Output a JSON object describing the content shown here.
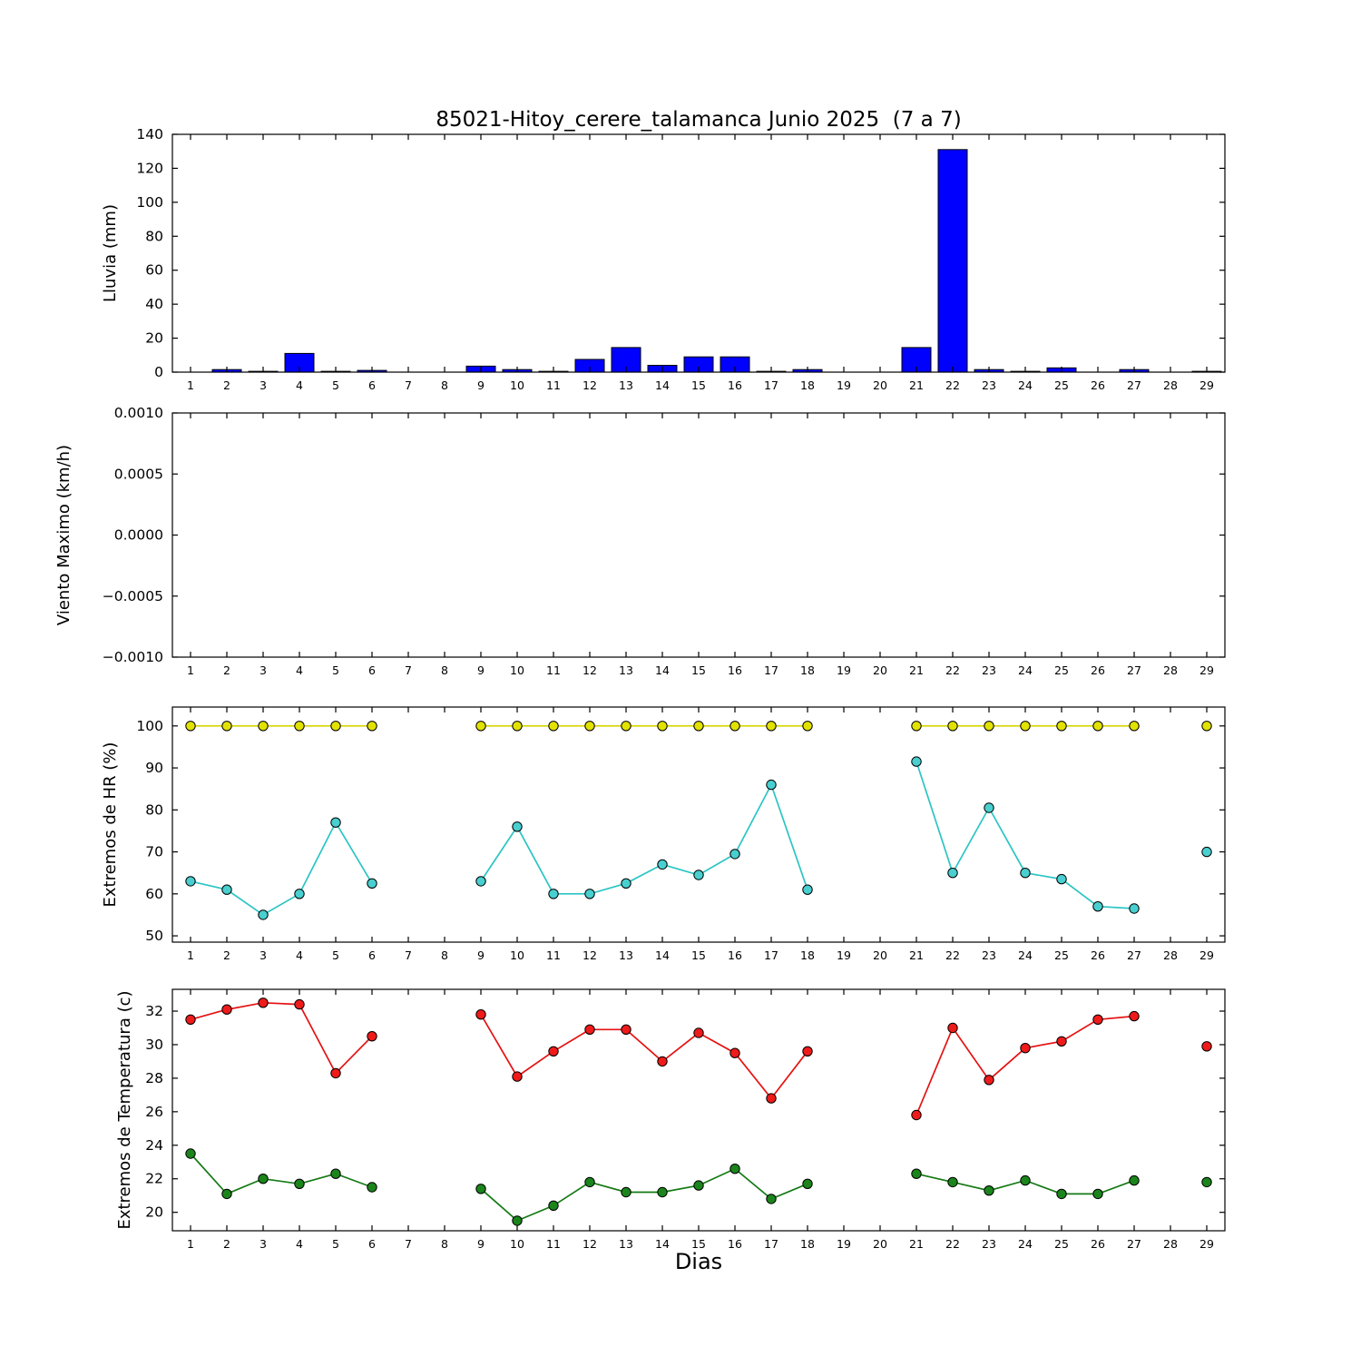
{
  "figure": {
    "title": "85021-Hitoy_cerere_talamanca Junio 2025  (7 a 7)",
    "xlabel": "Dias"
  },
  "xtick_labels": [
    "1",
    "2",
    "3",
    "4",
    "5",
    "6",
    "7",
    "8",
    "9",
    "10",
    "11",
    "12",
    "13",
    "14",
    "15",
    "16",
    "17",
    "18",
    "19",
    "20",
    "21",
    "22",
    "23",
    "24",
    "25",
    "26",
    "27",
    "28",
    "29"
  ],
  "chart_data": [
    {
      "type": "bar",
      "name": "lluvia",
      "title": "",
      "ylabel": "Lluvia (mm)",
      "xlim": [
        0.5,
        29.5
      ],
      "ylim": [
        0,
        140
      ],
      "ytick_values": [
        0,
        20,
        40,
        60,
        80,
        100,
        120,
        140
      ],
      "ytick_labels": [
        "0",
        "20",
        "40",
        "60",
        "80",
        "100",
        "120",
        "140"
      ],
      "bar_color": "#0000ff",
      "categories": [
        1,
        2,
        3,
        4,
        5,
        6,
        7,
        8,
        9,
        10,
        11,
        12,
        13,
        14,
        15,
        16,
        17,
        18,
        19,
        20,
        21,
        22,
        23,
        24,
        25,
        26,
        27,
        28,
        29
      ],
      "values": [
        0,
        1.5,
        0.5,
        11,
        0.5,
        1,
        0,
        0,
        3.5,
        1.5,
        0.5,
        7.5,
        14.5,
        4,
        9,
        9,
        0.5,
        1.5,
        0,
        0,
        14.5,
        131,
        1.5,
        0.5,
        2.5,
        0,
        1.5,
        0,
        0.5
      ]
    },
    {
      "type": "line",
      "name": "viento-maximo",
      "title": "",
      "ylabel": "Viento Maximo (km/h)",
      "xlim": [
        0.5,
        29.5
      ],
      "ylim": [
        -0.001,
        0.001
      ],
      "ytick_values": [
        -0.001,
        -0.0005,
        0,
        0.0005,
        0.001
      ],
      "ytick_labels": [
        "−0.0010",
        "−0.0005",
        "0.0000",
        "0.0005",
        "0.0010"
      ],
      "series": []
    },
    {
      "type": "line",
      "name": "extremos-hr",
      "title": "",
      "ylabel": "Extremos de HR (%)",
      "xlim": [
        0.5,
        29.5
      ],
      "ylim": [
        48.5,
        104.5
      ],
      "ytick_values": [
        50,
        60,
        70,
        80,
        90,
        100
      ],
      "ytick_labels": [
        "50",
        "60",
        "70",
        "80",
        "90",
        "100"
      ],
      "series": [
        {
          "name": "hr-maxima",
          "color": "#d6d600",
          "marker_fill": "#e2e200",
          "x": [
            1,
            2,
            3,
            4,
            5,
            6,
            9,
            10,
            11,
            12,
            13,
            14,
            15,
            16,
            17,
            18,
            21,
            22,
            23,
            24,
            25,
            26,
            27,
            29
          ],
          "y": [
            100,
            100,
            100,
            100,
            100,
            100,
            100,
            100,
            100,
            100,
            100,
            100,
            100,
            100,
            100,
            100,
            100,
            100,
            100,
            100,
            100,
            100,
            100,
            100
          ]
        },
        {
          "name": "hr-minima",
          "color": "#2cc4c4",
          "marker_fill": "#49cfcf",
          "x": [
            1,
            2,
            3,
            4,
            5,
            6,
            9,
            10,
            11,
            12,
            13,
            14,
            15,
            16,
            17,
            18,
            21,
            22,
            23,
            24,
            25,
            26,
            27,
            29
          ],
          "y": [
            63,
            61,
            55,
            60,
            77,
            62.5,
            63,
            76,
            60,
            60,
            62.5,
            67,
            64.5,
            69.5,
            86,
            61,
            91.5,
            65,
            80.5,
            65,
            63.5,
            57,
            56.5,
            70
          ]
        }
      ]
    },
    {
      "type": "line",
      "name": "extremos-temperatura",
      "title": "",
      "ylabel": "Extremos de Temperatura (c)",
      "xlim": [
        0.5,
        29.5
      ],
      "ylim": [
        18.9,
        33.3
      ],
      "ytick_values": [
        20,
        22,
        24,
        26,
        28,
        30,
        32
      ],
      "ytick_labels": [
        "20",
        "22",
        "24",
        "26",
        "28",
        "30",
        "32"
      ],
      "series": [
        {
          "name": "temperatura-maxima",
          "color": "#e51212",
          "marker_fill": "#ef1a1a",
          "x": [
            1,
            2,
            3,
            4,
            5,
            6,
            9,
            10,
            11,
            12,
            13,
            14,
            15,
            16,
            17,
            18,
            21,
            22,
            23,
            24,
            25,
            26,
            27,
            29
          ],
          "y": [
            31.5,
            32.1,
            32.5,
            32.4,
            28.3,
            30.5,
            31.8,
            28.1,
            29.6,
            30.9,
            30.9,
            29.0,
            30.7,
            29.5,
            26.8,
            29.6,
            25.8,
            31.0,
            27.9,
            29.8,
            30.2,
            31.5,
            31.7,
            29.9
          ]
        },
        {
          "name": "temperatura-minima",
          "color": "#157a15",
          "marker_fill": "#1b851b",
          "x": [
            1,
            2,
            3,
            4,
            5,
            6,
            9,
            10,
            11,
            12,
            13,
            14,
            15,
            16,
            17,
            18,
            21,
            22,
            23,
            24,
            25,
            26,
            27,
            29
          ],
          "y": [
            23.5,
            21.1,
            22.0,
            21.7,
            22.3,
            21.5,
            21.4,
            19.5,
            20.4,
            21.8,
            21.2,
            21.2,
            21.6,
            22.6,
            20.8,
            21.7,
            22.3,
            21.8,
            21.3,
            21.9,
            21.1,
            21.1,
            21.9,
            21.8
          ]
        }
      ]
    }
  ]
}
